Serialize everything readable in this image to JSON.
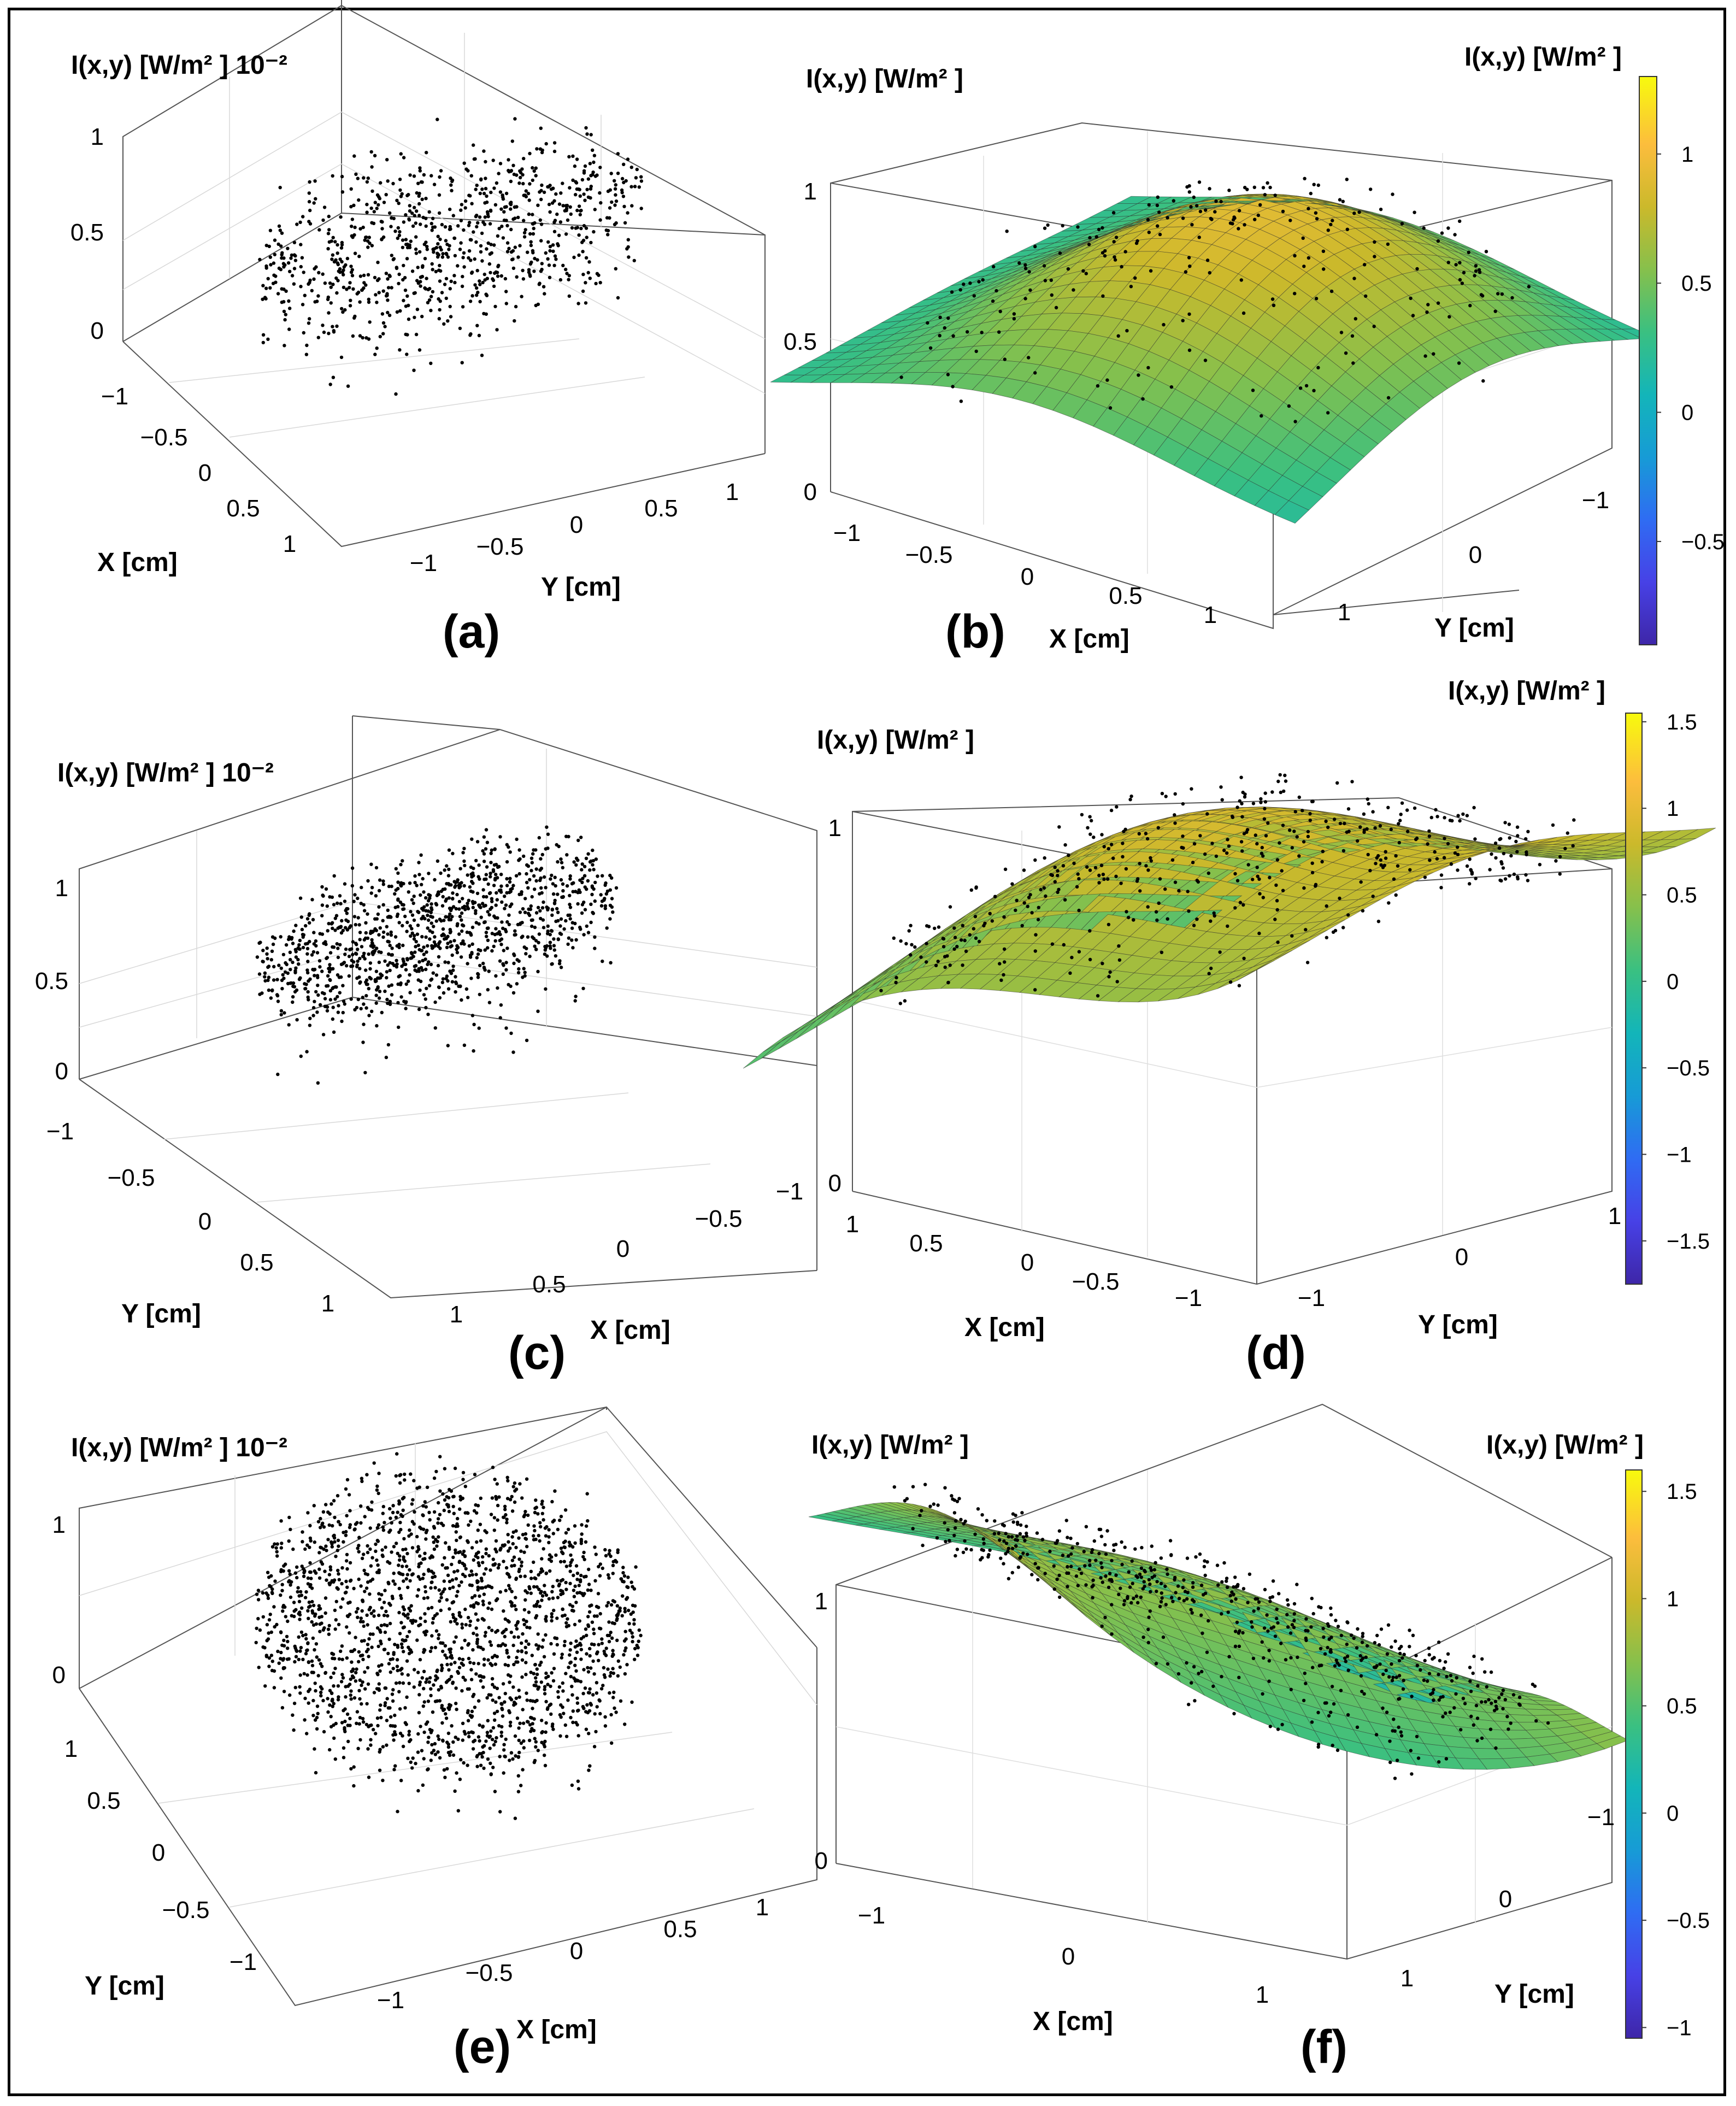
{
  "colors": {
    "parula": [
      "#3e26a8",
      "#4741e6",
      "#2f6cf3",
      "#179bd6",
      "#13b5b9",
      "#3ac081",
      "#86c04c",
      "#cbb92b",
      "#fcbd3d",
      "#f8fa0d"
    ],
    "edge": "#2b2b2b",
    "points": "#000000"
  },
  "chart_data": [
    {
      "id": "a",
      "type": "scatter3d",
      "panel_label": "(a)",
      "zlabel": "I(x,y) [W/m² ] 10⁻²",
      "xlabel": "X [cm]",
      "ylabel": "Y [cm]",
      "zticks": [
        "0",
        "0.5",
        "1"
      ],
      "xticks": [
        "−1",
        "−0.5",
        "0",
        "0.5",
        "1"
      ],
      "yticks": [
        "−1",
        "−0.5",
        "0",
        "0.5",
        "1"
      ],
      "xlim": [
        -1.2,
        1.2
      ],
      "ylim": [
        -1.2,
        1.2
      ],
      "zlim": [
        0,
        1
      ],
      "point_count": 900,
      "radius": 1.0,
      "z_center": 0.45,
      "z_spread": 0.18
    },
    {
      "id": "b",
      "type": "surface3d",
      "panel_label": "(b)",
      "zlabel": "I(x,y) [W/m² ]",
      "xlabel": "X [cm]",
      "ylabel": "Y [cm]",
      "zticks": [
        "0",
        "0.5",
        "1"
      ],
      "xticks": [
        "−1",
        "−0.5",
        "0",
        "0.5",
        "1"
      ],
      "yticks": [
        "−1",
        "0",
        "1"
      ],
      "colorbar_title": "I(x,y) [W/m² ]",
      "colorbar_ticks": [
        "−0.5",
        "0",
        "0.5",
        "1"
      ],
      "colorbar_range": [
        -0.9,
        1.3
      ],
      "zlim": [
        0,
        1
      ],
      "point_count": 300
    },
    {
      "id": "c",
      "type": "scatter3d",
      "panel_label": "(c)",
      "zlabel": "I(x,y) [W/m² ] 10⁻²",
      "xlabel": "X [cm]",
      "ylabel": "Y [cm]",
      "zticks": [
        "0",
        "0.5",
        "1"
      ],
      "xticks": [
        "1",
        "0.5",
        "0",
        "−0.5",
        "−1"
      ],
      "yticks": [
        "−1",
        "−0.5",
        "0",
        "0.5",
        "1"
      ],
      "xlim": [
        -1.2,
        1.2
      ],
      "ylim": [
        -1.2,
        1.2
      ],
      "zlim": [
        0,
        1
      ],
      "point_count": 1200,
      "radius": 1.0,
      "z_center": 0.6,
      "z_spread": 0.15
    },
    {
      "id": "d",
      "type": "surface3d",
      "panel_label": "(d)",
      "zlabel": "I(x,y) [W/m² ]",
      "xlabel": "X [cm]",
      "ylabel": "Y [cm]",
      "zticks": [
        "0",
        "1"
      ],
      "xticks": [
        "1",
        "0.5",
        "0",
        "−0.5",
        "−1"
      ],
      "yticks": [
        "−1",
        "0",
        "1"
      ],
      "colorbar_title": "I(x,y) [W/m² ]",
      "colorbar_ticks": [
        "−1.5",
        "−1",
        "−0.5",
        "0",
        "0.5",
        "1",
        "1.5"
      ],
      "colorbar_range": [
        -1.75,
        1.55
      ],
      "zlim": [
        0,
        1
      ],
      "point_count": 500
    },
    {
      "id": "e",
      "type": "scatter3d",
      "panel_label": "(e)",
      "zlabel": "I(x,y) [W/m² ] 10⁻²",
      "xlabel": "X [cm]",
      "ylabel": "Y [cm]",
      "zticks": [
        "0",
        "1"
      ],
      "xticks": [
        "−1",
        "−0.5",
        "0",
        "0.5",
        "1"
      ],
      "yticks": [
        "1",
        "0.5",
        "0",
        "−0.5",
        "−1"
      ],
      "xlim": [
        -1.2,
        1.2
      ],
      "ylim": [
        -1.2,
        1.2
      ],
      "zlim": [
        0,
        1
      ],
      "point_count": 2000,
      "radius": 1.0,
      "z_center": 0.5,
      "z_spread": 0.18
    },
    {
      "id": "f",
      "type": "surface3d",
      "panel_label": "(f)",
      "zlabel": "I(x,y) [W/m² ]",
      "xlabel": "X [cm]",
      "ylabel": "Y [cm]",
      "zticks": [
        "0",
        "1"
      ],
      "xticks": [
        "−1",
        "0",
        "1"
      ],
      "yticks": [
        "−1",
        "0",
        "1"
      ],
      "colorbar_title": "I(x,y) [W/m² ]",
      "colorbar_ticks": [
        "−1",
        "−0.5",
        "0",
        "0.5",
        "1",
        "1.5"
      ],
      "colorbar_range": [
        -1.05,
        1.6
      ],
      "zlim": [
        0,
        1
      ],
      "point_count": 700
    }
  ]
}
